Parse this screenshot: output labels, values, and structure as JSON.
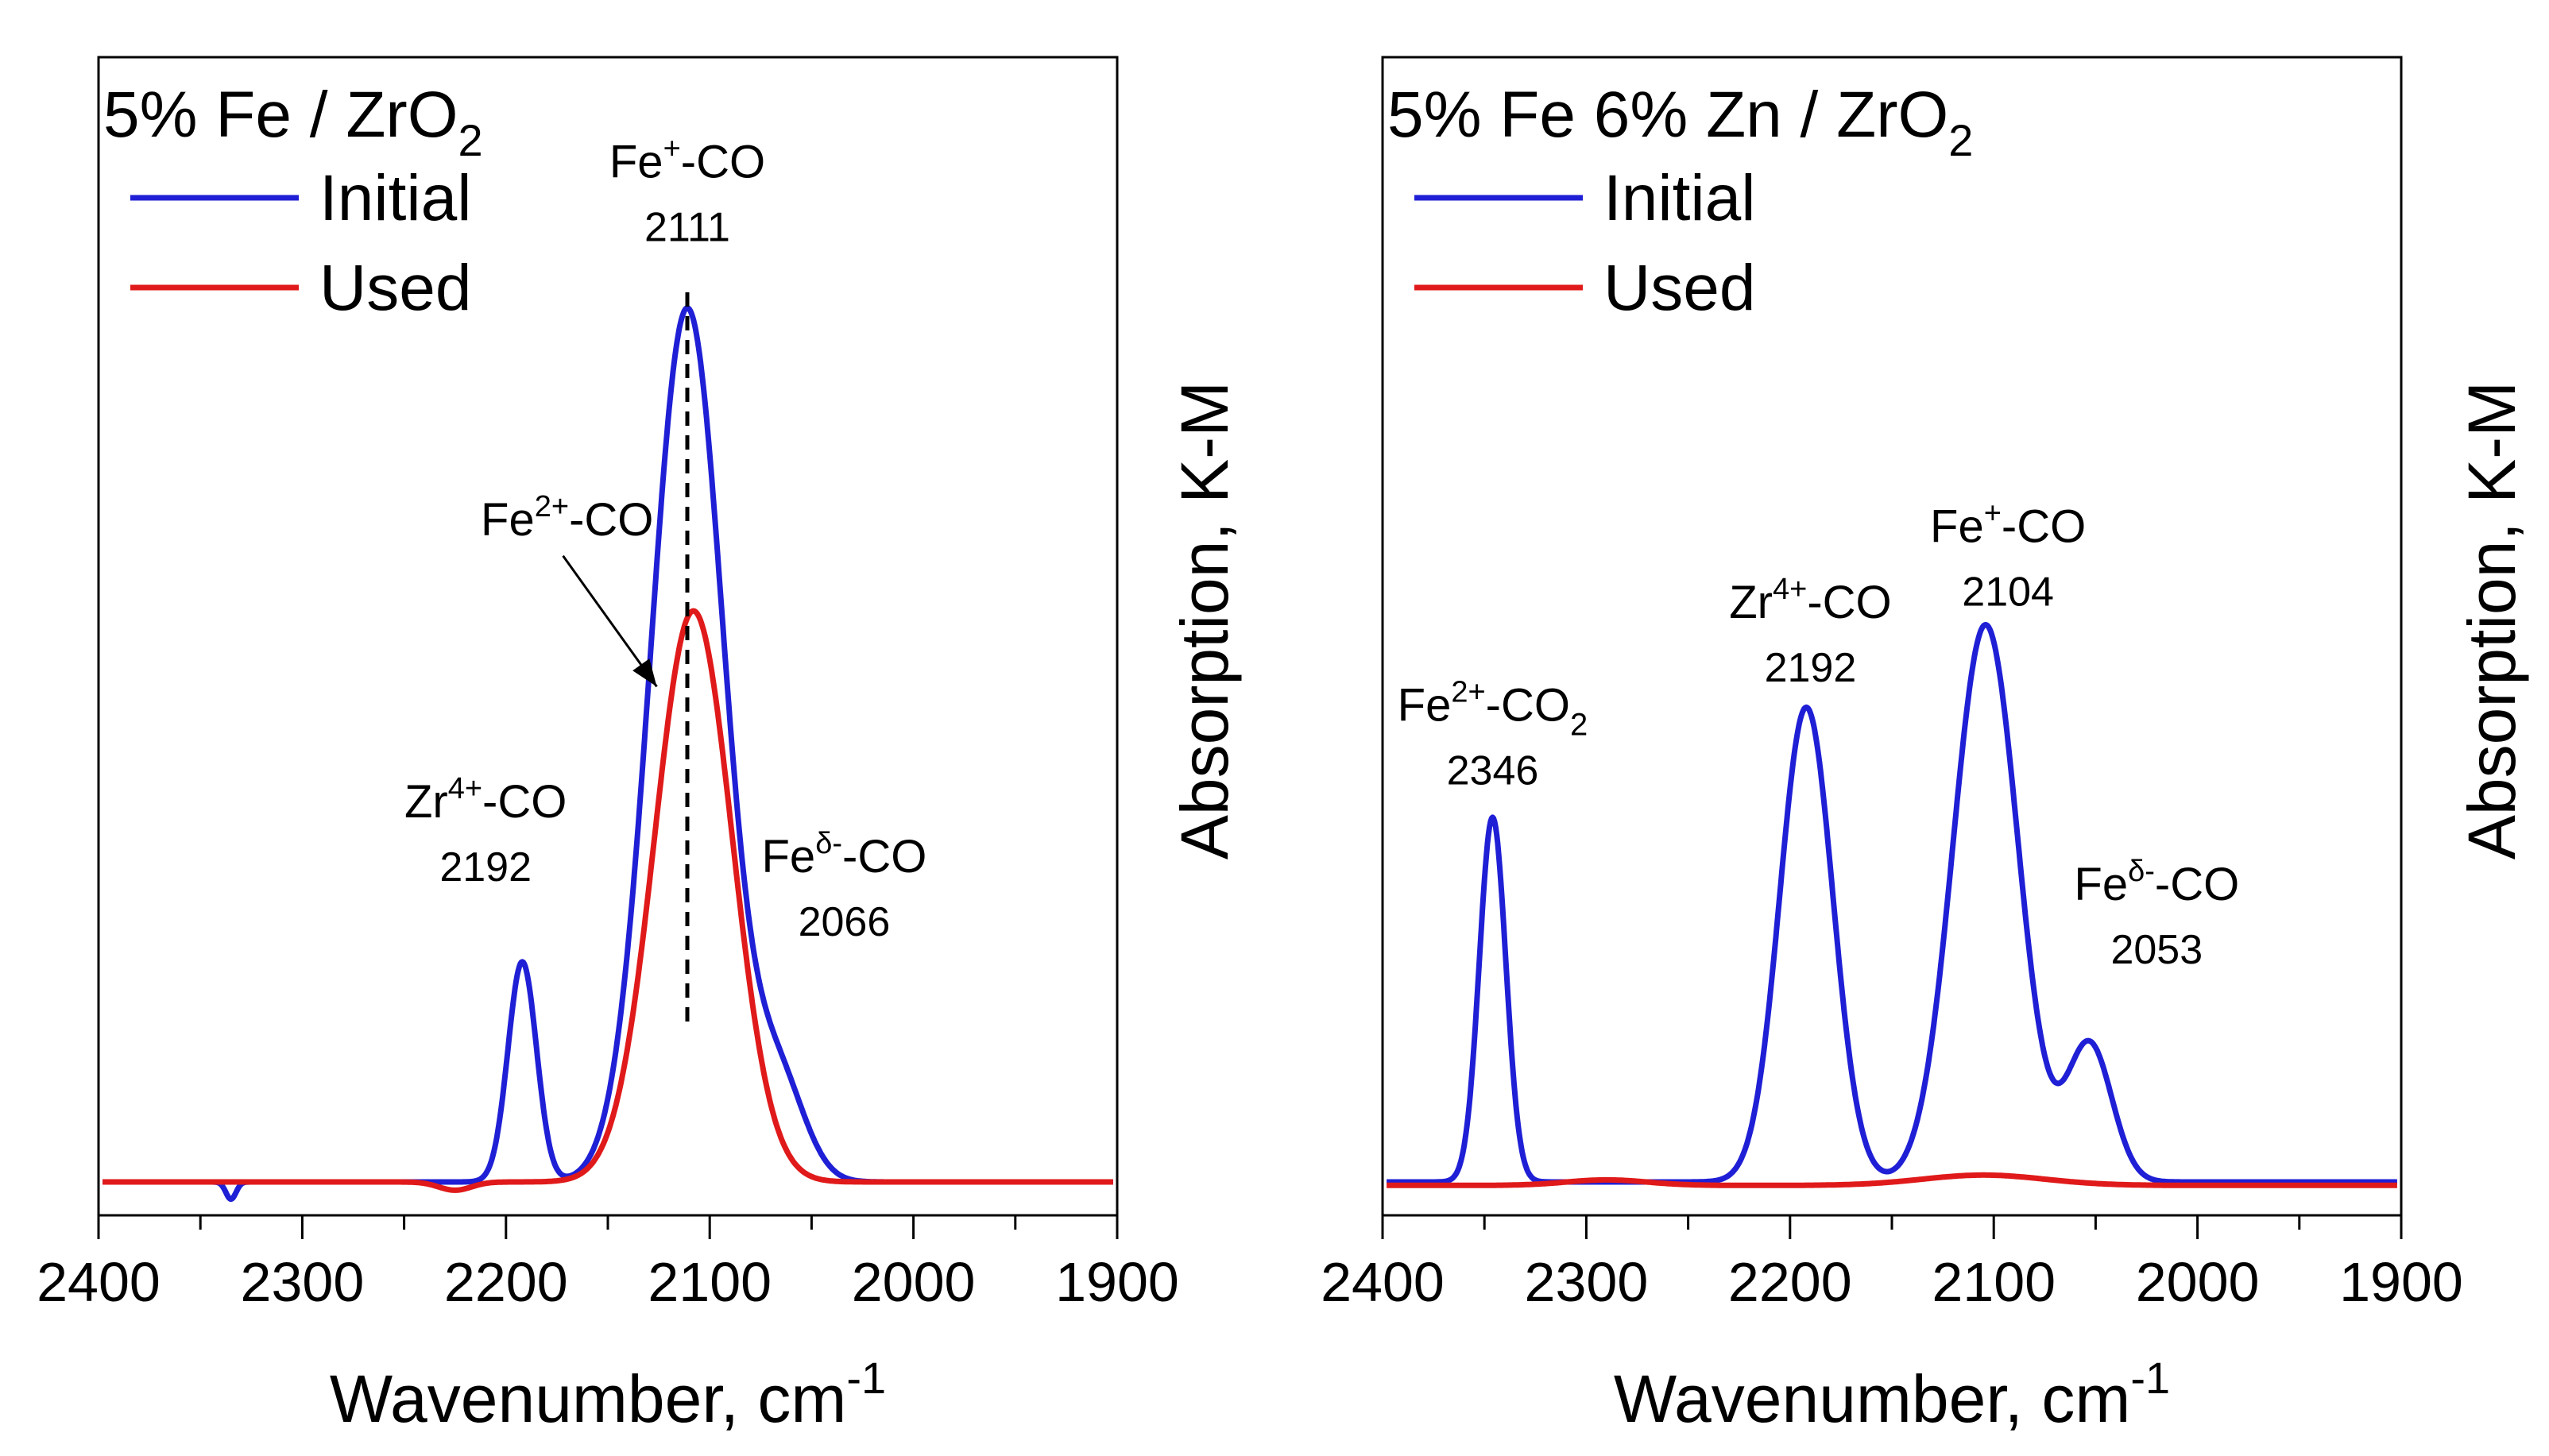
{
  "chart_data": [
    {
      "type": "line",
      "title": "5% Fe / ZrO",
      "title_sub": "2",
      "xlabel": "Wavenumber, cm",
      "xlabel_sup": "-1",
      "ylabel": "Absorption, K-M",
      "xlim": [
        2400,
        1900
      ],
      "ylim": [
        -0.05,
        1.6
      ],
      "x_ticks": [
        2400,
        2300,
        2200,
        2100,
        2000,
        1900
      ],
      "x_tick_labels": [
        "2400",
        "2300",
        "2200",
        "2100",
        "2000",
        "1900"
      ],
      "legend": [
        "Initial",
        "Used"
      ],
      "legend_position": "top-left",
      "series": [
        {
          "name": "Initial",
          "color": "#1f1fd6",
          "baseline": 0.0,
          "peaks": [
            {
              "center": 2192,
              "amp": 0.32,
              "width": 7
            },
            {
              "center": 2111,
              "amp": 1.27,
              "width": 18
            },
            {
              "center": 2066,
              "amp": 0.14,
              "width": 13
            }
          ],
          "noise_dip": {
            "center": 2335,
            "amp": -0.025,
            "width": 2.5
          }
        },
        {
          "name": "Used",
          "color": "#e01a1a",
          "baseline": 0.0,
          "peaks": [
            {
              "center": 2108,
              "amp": 0.83,
              "width": 19
            }
          ],
          "noise_dip": {
            "center": 2225,
            "amp": -0.012,
            "width": 8
          }
        }
      ],
      "annotations": [
        {
          "label": "Fe",
          "sup": "+",
          "rest": "-CO",
          "value": "2111",
          "x": 2111,
          "y": 1.46
        },
        {
          "label": "Fe",
          "sup": "2+",
          "rest": "-CO",
          "value": "",
          "x": 2170,
          "y": 0.94
        },
        {
          "label": "Zr",
          "sup": "4+",
          "rest": "-CO",
          "value": "2192",
          "x": 2210,
          "y": 0.53
        },
        {
          "label": "Fe",
          "sup": "δ-",
          "rest": "-CO",
          "value": "2066",
          "x": 2034,
          "y": 0.45
        }
      ],
      "dashed_line_x": 2111,
      "arrow": {
        "from_x": 2172,
        "from_y": 0.91,
        "to_x": 2126,
        "to_y": 0.72
      }
    },
    {
      "type": "line",
      "title": "5% Fe 6% Zn / ZrO",
      "title_sub": "2",
      "xlabel": "Wavenumber, cm",
      "xlabel_sup": "-1",
      "ylabel": "Absorption, K-M",
      "xlim": [
        2400,
        1900
      ],
      "ylim": [
        -0.05,
        1.6
      ],
      "x_ticks": [
        2400,
        2300,
        2200,
        2100,
        2000,
        1900
      ],
      "x_tick_labels": [
        "2400",
        "2300",
        "2200",
        "2100",
        "2000",
        "1900"
      ],
      "legend": [
        "Initial",
        "Used"
      ],
      "legend_position": "top-left",
      "series": [
        {
          "name": "Initial",
          "color": "#1f1fd6",
          "baseline": 0.0,
          "peaks": [
            {
              "center": 2346,
              "amp": 0.53,
              "width": 6.5
            },
            {
              "center": 2192,
              "amp": 0.69,
              "width": 13
            },
            {
              "center": 2104,
              "amp": 0.81,
              "width": 16
            },
            {
              "center": 2053,
              "amp": 0.2,
              "width": 11
            }
          ]
        },
        {
          "name": "Used",
          "color": "#e01a1a",
          "baseline": -0.005,
          "peaks": [
            {
              "center": 2105,
              "amp": 0.015,
              "width": 30
            },
            {
              "center": 2290,
              "amp": 0.008,
              "width": 20
            }
          ]
        }
      ],
      "annotations": [
        {
          "label": "Fe",
          "sup": "2+",
          "rest": "-CO",
          "sub": "2",
          "value": "2346",
          "x": 2346,
          "y": 0.67
        },
        {
          "label": "Zr",
          "sup": "4+",
          "rest": "-CO",
          "value": "2192",
          "x": 2190,
          "y": 0.82
        },
        {
          "label": "Fe",
          "sup": "+",
          "rest": "-CO",
          "value": "2104",
          "x": 2093,
          "y": 0.93
        },
        {
          "label": "Fe",
          "sup": "δ-",
          "rest": "-CO",
          "value": "2053",
          "x": 2020,
          "y": 0.41
        }
      ]
    }
  ]
}
